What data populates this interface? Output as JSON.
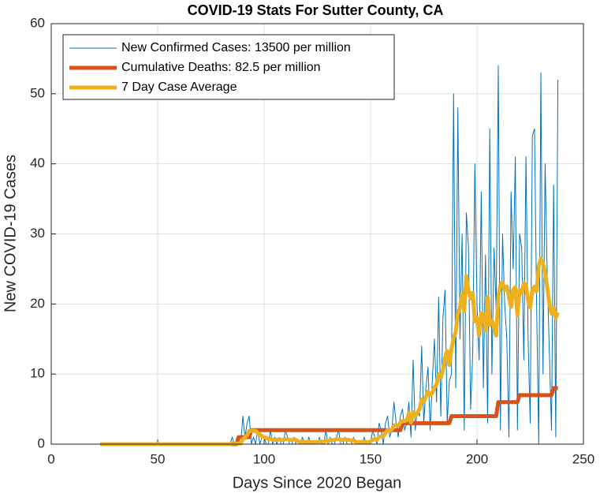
{
  "chart_data": {
    "type": "line",
    "title": "COVID-19 Stats For Sutter County, CA",
    "xlabel": "Days Since 2020 Began",
    "ylabel": "New COVID-19 Cases",
    "x": [
      23,
      24,
      25,
      26,
      27,
      28,
      29,
      30,
      31,
      32,
      33,
      34,
      35,
      36,
      37,
      38,
      39,
      40,
      41,
      42,
      43,
      44,
      45,
      46,
      47,
      48,
      49,
      50,
      51,
      52,
      53,
      54,
      55,
      56,
      57,
      58,
      59,
      60,
      61,
      62,
      63,
      64,
      65,
      66,
      67,
      68,
      69,
      70,
      71,
      72,
      73,
      74,
      75,
      76,
      77,
      78,
      79,
      80,
      81,
      82,
      83,
      84,
      85,
      86,
      87,
      88,
      89,
      90,
      91,
      92,
      93,
      94,
      95,
      96,
      97,
      98,
      99,
      100,
      101,
      102,
      103,
      104,
      105,
      106,
      107,
      108,
      109,
      110,
      111,
      112,
      113,
      114,
      115,
      116,
      117,
      118,
      119,
      120,
      121,
      122,
      123,
      124,
      125,
      126,
      127,
      128,
      129,
      130,
      131,
      132,
      133,
      134,
      135,
      136,
      137,
      138,
      139,
      140,
      141,
      142,
      143,
      144,
      145,
      146,
      147,
      148,
      149,
      150,
      151,
      152,
      153,
      154,
      155,
      156,
      157,
      158,
      159,
      160,
      161,
      162,
      163,
      164,
      165,
      166,
      167,
      168,
      169,
      170,
      171,
      172,
      173,
      174,
      175,
      176,
      177,
      178,
      179,
      180,
      181,
      182,
      183,
      184,
      185,
      186,
      187,
      188,
      189,
      190,
      191,
      192,
      193,
      194,
      195,
      196,
      197,
      198,
      199,
      200,
      201,
      202,
      203,
      204,
      205,
      206,
      207,
      208,
      209,
      210,
      211,
      212,
      213,
      214,
      215,
      216,
      217,
      218,
      219,
      220,
      221,
      222,
      223,
      224,
      225,
      226,
      227,
      228,
      229,
      230,
      231,
      232,
      233,
      234,
      235,
      236,
      237,
      238
    ],
    "series": [
      {
        "name": "New Confirmed Cases: 13500 per million",
        "color": "#0072bd",
        "width": 1,
        "values": [
          0,
          0,
          0,
          0,
          0,
          0,
          0,
          0,
          0,
          0,
          0,
          0,
          0,
          0,
          0,
          0,
          0,
          0,
          0,
          0,
          0,
          0,
          0,
          0,
          0,
          0,
          0,
          0,
          0,
          0,
          0,
          0,
          0,
          0,
          0,
          0,
          0,
          0,
          0,
          0,
          0,
          0,
          0,
          0,
          0,
          0,
          0,
          0,
          0,
          0,
          0,
          0,
          0,
          0,
          0,
          0,
          0,
          0,
          0,
          0,
          0,
          0,
          1,
          0,
          0,
          0,
          0,
          4,
          1,
          3,
          4,
          0,
          1,
          0,
          2,
          0,
          1,
          1,
          0,
          0,
          2,
          0,
          1,
          0,
          1,
          0,
          0,
          2,
          1,
          0,
          0,
          1,
          0,
          0,
          0,
          1,
          0,
          0,
          1,
          0,
          0,
          0,
          0,
          1,
          0,
          0,
          2,
          0,
          1,
          0,
          0,
          1,
          2,
          0,
          0,
          1,
          0,
          0,
          0,
          1,
          0,
          0,
          0,
          0,
          1,
          0,
          0,
          0,
          2,
          1,
          0,
          3,
          2,
          0,
          3,
          4,
          1,
          2,
          6,
          3,
          1,
          4,
          5,
          2,
          3,
          6,
          1,
          12,
          2,
          5,
          4,
          14,
          3,
          8,
          11,
          2,
          9,
          15,
          6,
          21,
          4,
          18,
          22,
          3,
          9,
          10,
          50,
          8,
          48,
          15,
          30,
          2,
          33,
          28,
          5,
          13,
          40,
          20,
          12,
          36,
          8,
          27,
          3,
          45,
          10,
          28,
          19,
          54,
          2,
          30,
          20,
          15,
          1,
          36,
          25,
          41,
          2,
          30,
          28,
          12,
          41,
          15,
          3,
          44,
          45,
          20,
          0,
          53,
          10,
          40,
          24,
          13,
          2,
          37,
          1,
          52
        ]
      },
      {
        "name": "Cumulative Deaths: 82.5 per million",
        "color": "#d95319",
        "width": 5,
        "values": [
          0,
          0,
          0,
          0,
          0,
          0,
          0,
          0,
          0,
          0,
          0,
          0,
          0,
          0,
          0,
          0,
          0,
          0,
          0,
          0,
          0,
          0,
          0,
          0,
          0,
          0,
          0,
          0,
          0,
          0,
          0,
          0,
          0,
          0,
          0,
          0,
          0,
          0,
          0,
          0,
          0,
          0,
          0,
          0,
          0,
          0,
          0,
          0,
          0,
          0,
          0,
          0,
          0,
          0,
          0,
          0,
          0,
          0,
          0,
          0,
          0,
          0,
          0,
          0,
          0,
          1,
          1,
          1,
          1,
          1,
          1,
          2,
          2,
          2,
          2,
          2,
          2,
          2,
          2,
          2,
          2,
          2,
          2,
          2,
          2,
          2,
          2,
          2,
          2,
          2,
          2,
          2,
          2,
          2,
          2,
          2,
          2,
          2,
          2,
          2,
          2,
          2,
          2,
          2,
          2,
          2,
          2,
          2,
          2,
          2,
          2,
          2,
          2,
          2,
          2,
          2,
          2,
          2,
          2,
          2,
          2,
          2,
          2,
          2,
          2,
          2,
          2,
          2,
          2,
          2,
          2,
          2,
          2,
          2,
          2,
          2,
          2,
          2,
          2,
          2,
          2,
          2,
          3,
          3,
          3,
          3,
          3,
          3,
          3,
          3,
          3,
          3,
          3,
          3,
          3,
          3,
          3,
          3,
          3,
          3,
          3,
          3,
          3,
          3,
          3,
          4,
          4,
          4,
          4,
          4,
          4,
          4,
          4,
          4,
          4,
          4,
          4,
          4,
          4,
          4,
          4,
          4,
          4,
          4,
          4,
          4,
          4,
          6,
          6,
          6,
          6,
          6,
          6,
          6,
          6,
          6,
          6,
          7,
          7,
          7,
          7,
          7,
          7,
          7,
          7,
          7,
          7,
          7,
          7,
          7,
          7,
          7,
          7,
          8,
          8,
          8
        ]
      },
      {
        "name": "7 Day Case Average",
        "color": "#edb120",
        "width": 5,
        "values": [
          0,
          0,
          0,
          0,
          0,
          0,
          0,
          0,
          0,
          0,
          0,
          0,
          0,
          0,
          0,
          0,
          0,
          0,
          0,
          0,
          0,
          0,
          0,
          0,
          0,
          0,
          0,
          0,
          0,
          0,
          0,
          0,
          0,
          0,
          0,
          0,
          0,
          0,
          0,
          0,
          0,
          0,
          0,
          0,
          0,
          0,
          0,
          0,
          0,
          0,
          0,
          0,
          0,
          0,
          0,
          0,
          0,
          0,
          0,
          0,
          0,
          0,
          0.1,
          0.1,
          0.1,
          0.1,
          0.1,
          0.7,
          0.9,
          1.3,
          1.9,
          1.9,
          1.9,
          1.9,
          1.6,
          1.4,
          1.1,
          1.0,
          0.9,
          0.7,
          0.8,
          0.6,
          0.6,
          0.6,
          0.7,
          0.6,
          0.6,
          0.7,
          0.7,
          0.6,
          0.6,
          0.7,
          0.6,
          0.4,
          0.3,
          0.4,
          0.3,
          0.3,
          0.4,
          0.3,
          0.3,
          0.3,
          0.3,
          0.4,
          0.4,
          0.3,
          0.6,
          0.4,
          0.6,
          0.6,
          0.6,
          0.7,
          0.7,
          0.6,
          0.6,
          0.7,
          0.6,
          0.6,
          0.5,
          0.6,
          0.3,
          0.3,
          0.3,
          0.3,
          0.3,
          0.3,
          0.3,
          0.4,
          0.6,
          0.7,
          0.6,
          1.0,
          1.1,
          1.1,
          1.6,
          2.0,
          1.9,
          2.1,
          2.7,
          2.7,
          2.6,
          3.1,
          3.3,
          3.3,
          3.4,
          4.4,
          3.1,
          4.6,
          4.0,
          4.5,
          5.0,
          6.4,
          6.0,
          6.8,
          7.5,
          7.0,
          7.3,
          8.1,
          8.5,
          10.0,
          9.5,
          10.6,
          12.4,
          13.3,
          11.3,
          13.6,
          15.1,
          16.0,
          18.6,
          19.5,
          21.5,
          19.0,
          24.0,
          22.0,
          20.8,
          21.6,
          17.5,
          18.0,
          15.5,
          18.7,
          18.6,
          16.2,
          21.0,
          17.0,
          17.6,
          16.8,
          15.5,
          21.0,
          22.7,
          23.1,
          22.0,
          22.5,
          21.0,
          19.6,
          22.0,
          22.4,
          18.4,
          22.0,
          21.5,
          23.0,
          22.7,
          20.5,
          19.5,
          22.0,
          22.5,
          21.8,
          25.5,
          26.5,
          25.7,
          24.5,
          22.4,
          20.0,
          18.6,
          19.5,
          18.0,
          18.8
        ]
      }
    ],
    "xlim": [
      0,
      250
    ],
    "xticks": [
      0,
      50,
      100,
      150,
      200,
      250
    ],
    "ylim": [
      0,
      60
    ],
    "yticks": [
      0,
      10,
      20,
      30,
      40,
      50,
      60
    ],
    "grid": true,
    "legend": "upper left"
  }
}
